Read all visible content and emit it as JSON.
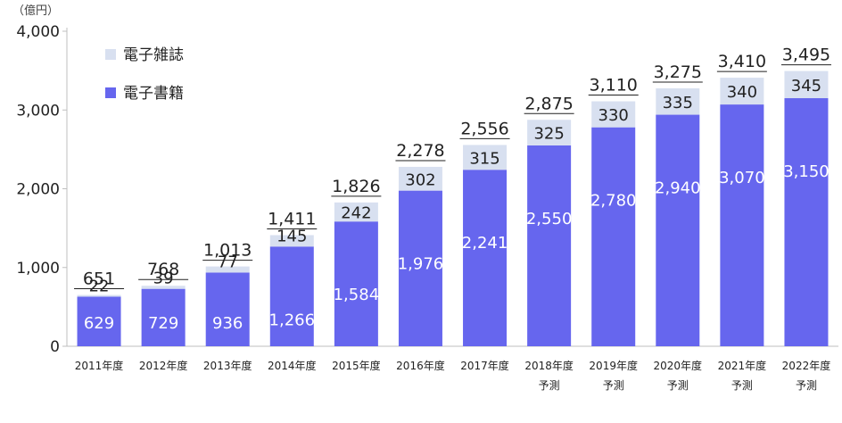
{
  "chart_data": {
    "type": "bar",
    "stacked": true,
    "unit_label": "（億円）",
    "categories": [
      [
        "2011年度"
      ],
      [
        "2012年度"
      ],
      [
        "2013年度"
      ],
      [
        "2014年度"
      ],
      [
        "2015年度"
      ],
      [
        "2016年度"
      ],
      [
        "2017年度"
      ],
      [
        "2018年度",
        "予測"
      ],
      [
        "2019年度",
        "予測"
      ],
      [
        "2020年度",
        "予測"
      ],
      [
        "2021年度",
        "予測"
      ],
      [
        "2022年度",
        "予測"
      ]
    ],
    "series": [
      {
        "name": "電子書籍",
        "color": "#6666ee",
        "values": [
          629,
          729,
          936,
          1266,
          1584,
          1976,
          2241,
          2550,
          2780,
          2940,
          3070,
          3150
        ]
      },
      {
        "name": "電子雑誌",
        "color": "#d8e0f0",
        "values": [
          22,
          39,
          77,
          145,
          242,
          302,
          315,
          325,
          330,
          335,
          340,
          345
        ]
      }
    ],
    "value_labels": {
      "電子書籍": [
        "629",
        "729",
        "936",
        "1,266",
        "1,584",
        "1,976",
        "2,241",
        "2,550",
        "2,780",
        "2,940",
        "3,070",
        "3,150"
      ],
      "電子雑誌": [
        "22",
        "39",
        "77",
        "145",
        "242",
        "302",
        "315",
        "325",
        "330",
        "335",
        "340",
        "345"
      ]
    },
    "totals": [
      651,
      768,
      1013,
      1411,
      1826,
      2278,
      2556,
      2875,
      3110,
      3275,
      3410,
      3495
    ],
    "total_labels": [
      "651",
      "768",
      "1,013",
      "1,411",
      "1,826",
      "2,278",
      "2,556",
      "2,875",
      "3,110",
      "3,275",
      "3,410",
      "3,495"
    ],
    "ylim": [
      0,
      4000
    ],
    "yticks": [
      0,
      1000,
      2000,
      3000,
      4000
    ],
    "ytick_labels": [
      "0",
      "1,000",
      "2,000",
      "3,000",
      "4,000"
    ],
    "grid": false,
    "legend": {
      "position": "top-left",
      "order": [
        "電子雑誌",
        "電子書籍"
      ]
    }
  }
}
